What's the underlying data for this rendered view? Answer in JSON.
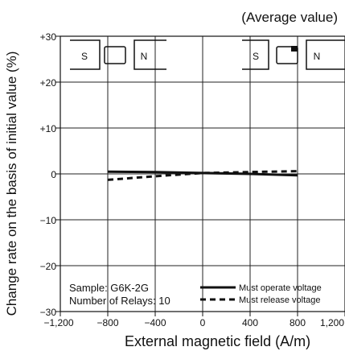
{
  "chart_data": {
    "type": "line",
    "title": "(Average value)",
    "xlabel": "External magnetic field (A/m)",
    "ylabel": "Change rate on the basis of initial value (%)",
    "xlim": [
      -1200,
      1200
    ],
    "ylim": [
      -30,
      30
    ],
    "x_ticks": [
      -1200,
      -800,
      -400,
      0,
      400,
      800,
      1200
    ],
    "x_tick_labels": [
      "−1,200",
      "−800",
      "−400",
      "0",
      "400",
      "800",
      "1,200"
    ],
    "y_ticks": [
      -30,
      -20,
      -10,
      0,
      10,
      20,
      30
    ],
    "y_tick_labels": [
      "−30",
      "−20",
      "−10",
      "0",
      "+10",
      "+20",
      "+30"
    ],
    "grid": true,
    "series": [
      {
        "name": "Must operate voltage",
        "style": "solid",
        "x": [
          -800,
          -400,
          0,
          400,
          800
        ],
        "y": [
          0.5,
          0.4,
          0.2,
          0.0,
          -0.3
        ]
      },
      {
        "name": "Must release voltage",
        "style": "dashed",
        "x": [
          -800,
          -400,
          0,
          400,
          800
        ],
        "y": [
          -1.3,
          -0.5,
          0.2,
          0.4,
          0.6
        ]
      }
    ],
    "annotations": {
      "sample": "Sample: G6K-2G",
      "relays": "Number of Relays: 10"
    },
    "magnet_diagrams": {
      "left": {
        "pole_left": "S",
        "pole_right": "N"
      },
      "right": {
        "pole_left": "S",
        "pole_right": "N"
      }
    }
  }
}
